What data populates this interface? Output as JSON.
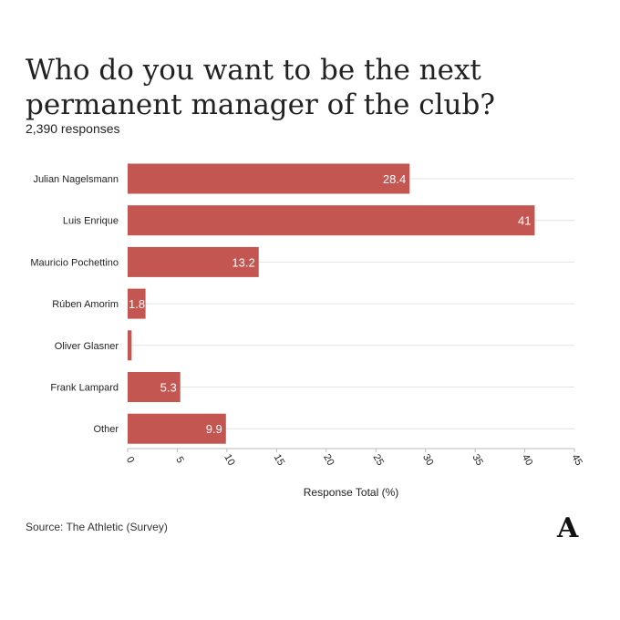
{
  "chart_data": {
    "type": "bar",
    "orientation": "horizontal",
    "title": "Who do you want to be the next permanent manager of the club?",
    "subtitle": "2,390 responses",
    "categories": [
      "Julian Nagelsmann",
      "Luis Enrique",
      "Mauricio Pochettino",
      "Rúben Amorim",
      "Oliver Glasner",
      "Frank Lampard",
      "Other"
    ],
    "values": [
      28.4,
      41,
      13.2,
      1.8,
      0.4,
      5.3,
      9.9
    ],
    "data_labels": [
      "28.4",
      "41",
      "13.2",
      "1.8",
      "",
      "5.3",
      "9.9"
    ],
    "xlabel": "Response Total (%)",
    "xlim": [
      0,
      45
    ],
    "xticks": [
      0,
      5,
      10,
      15,
      20,
      25,
      30,
      35,
      40,
      45
    ],
    "grid": true,
    "bar_color": "#c45651"
  },
  "source": "Source: The Athletic (Survey)",
  "logo_text": "A"
}
